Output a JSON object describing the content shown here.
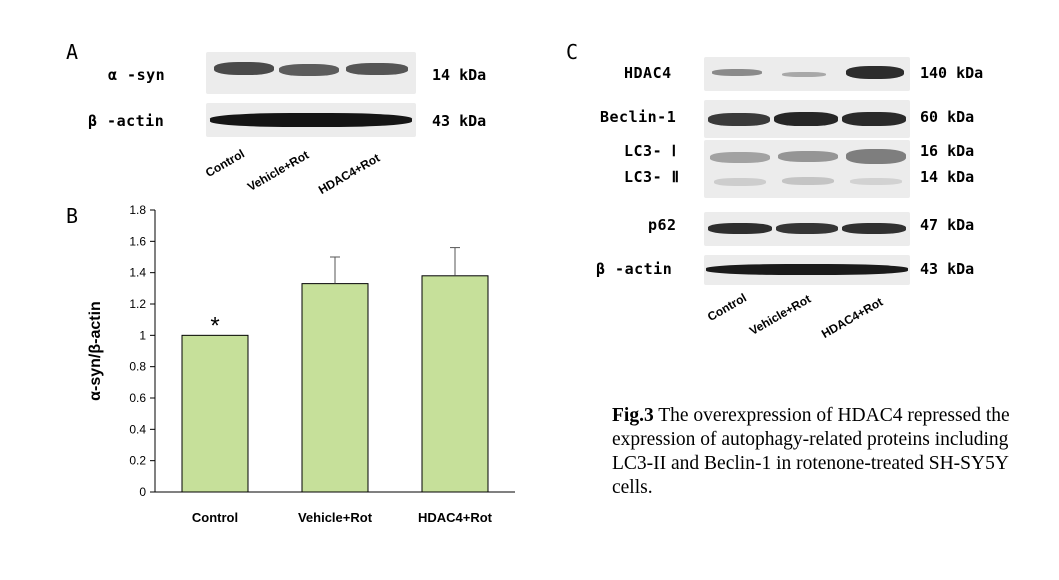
{
  "panel_a": {
    "letter": "A",
    "rows": [
      {
        "label": "α -syn",
        "kda": "14 kDa"
      },
      {
        "label": "β -actin",
        "kda": "43 kDa"
      }
    ],
    "lanes": [
      "Control",
      "Vehicle+Rot",
      "HDAC4+Rot"
    ]
  },
  "panel_b": {
    "letter": "B",
    "star": "*"
  },
  "panel_c": {
    "letter": "C",
    "rows": [
      {
        "label": "HDAC4",
        "kda": "140 kDa"
      },
      {
        "label": "Beclin-1",
        "kda": "60 kDa"
      },
      {
        "label": "LC3- Ⅰ",
        "kda": "16 kDa"
      },
      {
        "label": "LC3- Ⅱ",
        "kda": "14 kDa"
      },
      {
        "label": "p62",
        "kda": "47 kDa"
      },
      {
        "label": "β -actin",
        "kda": "43 kDa"
      }
    ],
    "lanes": [
      "Control",
      "Vehicle+Rot",
      "HDAC4+Rot"
    ]
  },
  "caption": {
    "bold": "Fig.3",
    "text": " The overexpression of HDAC4 repressed the expression of autophagy-related proteins including LC3-II and Beclin-1 in rotenone-treated SH-SY5Y cells."
  },
  "chart_data": {
    "type": "bar",
    "categories": [
      "Control",
      "Vehicle+Rot",
      "HDAC4+Rot"
    ],
    "values": [
      1.0,
      1.33,
      1.38
    ],
    "errors": [
      0,
      0.17,
      0.18
    ],
    "ylabel": "α-syn/β-actin",
    "ylim": [
      0,
      1.8
    ],
    "yticks": [
      "0",
      "0.2",
      "0.4",
      "0.6",
      "0.8",
      "1",
      "1.2",
      "1.4",
      "1.6",
      "1.8"
    ],
    "bar_color": "#c6e09a",
    "annotation": "*",
    "grid": false
  }
}
